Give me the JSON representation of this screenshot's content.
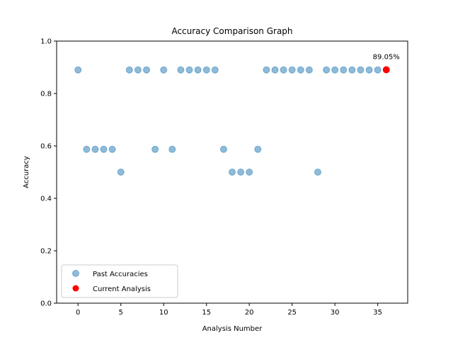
{
  "chart_data": {
    "type": "scatter",
    "title": "Accuracy Comparison Graph",
    "xlabel": "Analysis Number",
    "ylabel": "Accuracy",
    "xlim": [
      -2.5,
      38.5
    ],
    "ylim": [
      0,
      1.0
    ],
    "xticks": [
      0,
      5,
      10,
      15,
      20,
      25,
      30,
      35
    ],
    "yticks": [
      0.0,
      0.2,
      0.4,
      0.6,
      0.8,
      1.0
    ],
    "grid": false,
    "legend_position": "lower-left",
    "series": [
      {
        "name": "Past Accuracies",
        "color": "#1f77b4",
        "alpha": 0.5,
        "x": [
          0,
          1,
          2,
          3,
          4,
          5,
          6,
          7,
          8,
          9,
          10,
          11,
          12,
          13,
          14,
          15,
          16,
          17,
          18,
          19,
          20,
          21,
          22,
          23,
          24,
          25,
          26,
          27,
          28,
          29,
          30,
          31,
          32,
          33,
          34,
          35
        ],
        "y": [
          0.89,
          0.587,
          0.587,
          0.587,
          0.587,
          0.5,
          0.89,
          0.89,
          0.89,
          0.587,
          0.89,
          0.587,
          0.89,
          0.89,
          0.89,
          0.89,
          0.89,
          0.587,
          0.5,
          0.5,
          0.5,
          0.587,
          0.89,
          0.89,
          0.89,
          0.89,
          0.89,
          0.89,
          0.5,
          0.89,
          0.89,
          0.89,
          0.89,
          0.89,
          0.89,
          0.89
        ]
      },
      {
        "name": "Current Analysis",
        "color": "#ff0000",
        "alpha": 1.0,
        "x": [
          36
        ],
        "y": [
          0.8905
        ]
      }
    ],
    "annotations": [
      {
        "text": "89.05%",
        "x": 36,
        "y": 0.8905
      }
    ]
  }
}
